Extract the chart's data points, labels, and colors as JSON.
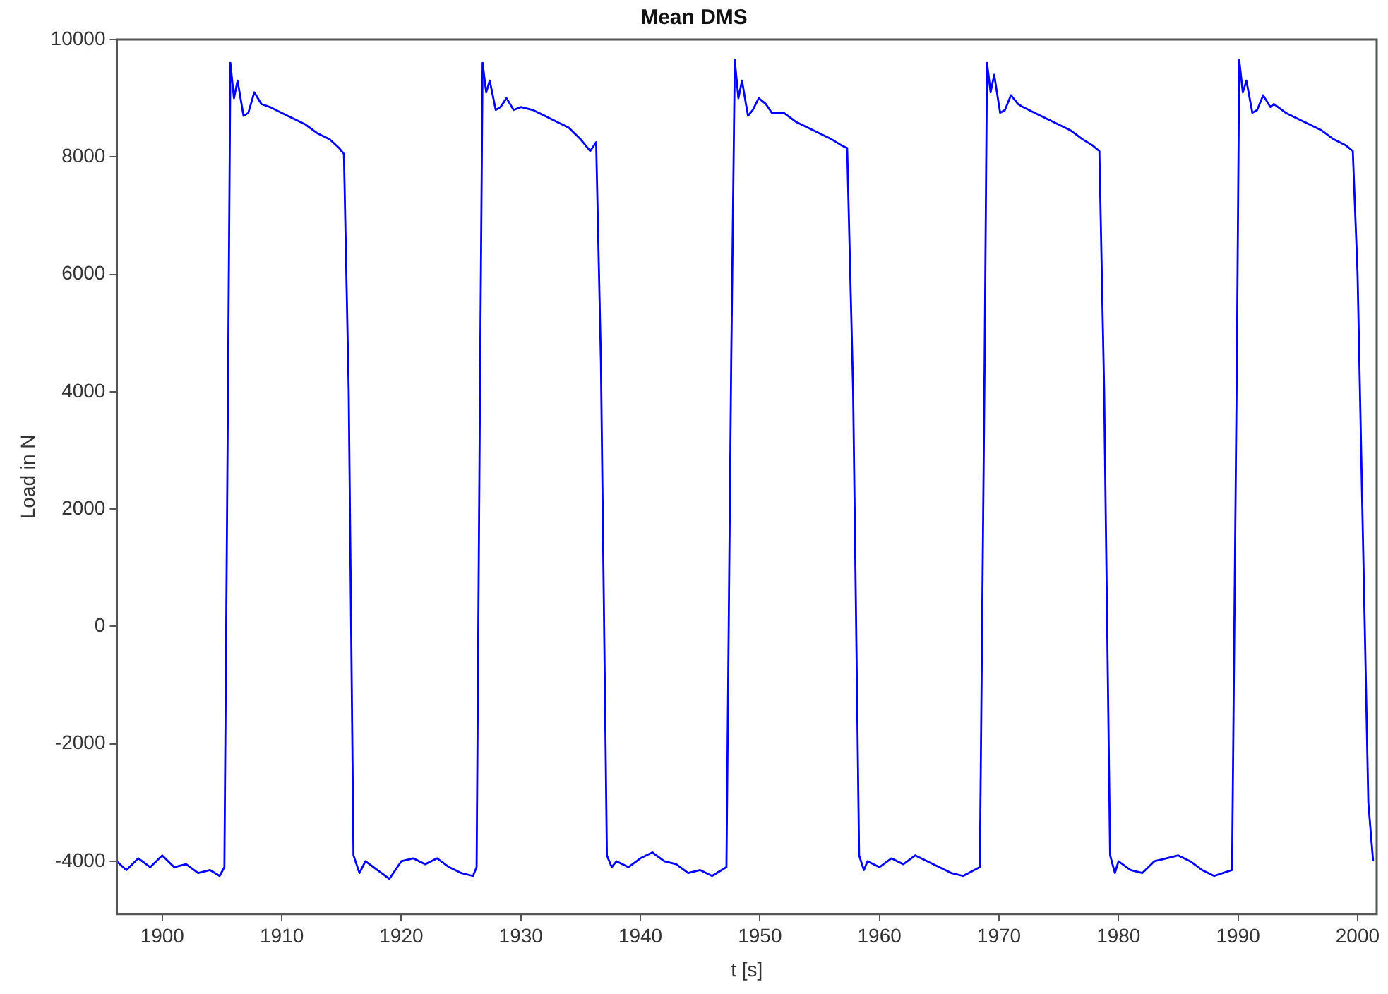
{
  "chart_data": {
    "type": "line",
    "title": "Mean DMS",
    "xlabel": "t [s]",
    "ylabel": "Load in N",
    "xlim": [
      1896.2,
      2001.6
    ],
    "xticks": [
      1900,
      1910,
      1920,
      1930,
      1940,
      1950,
      1960,
      1970,
      1980,
      1990,
      2000
    ],
    "ylim": [
      -4900,
      10000
    ],
    "yticks": [
      -4000,
      -2000,
      0,
      2000,
      4000,
      6000,
      8000,
      10000
    ],
    "grid": false,
    "legend": false,
    "marker": "none",
    "line_style": "solid",
    "series": [
      {
        "color": "#0000ff",
        "x": [
          1896.2,
          1897,
          1898,
          1899,
          1900,
          1901,
          1902,
          1903,
          1904,
          1904.8,
          1905.2,
          1905.5,
          1905.7,
          1906.0,
          1906.3,
          1906.8,
          1907.2,
          1907.7,
          1908.3,
          1909,
          1910,
          1911,
          1912,
          1913,
          1914,
          1914.8,
          1915.2,
          1915.6,
          1916.0,
          1916.5,
          1917,
          1918,
          1919,
          1920,
          1921,
          1922,
          1923,
          1924,
          1925,
          1926,
          1926.3,
          1926.6,
          1926.8,
          1927.1,
          1927.4,
          1927.9,
          1928.3,
          1928.8,
          1929.4,
          1930,
          1931,
          1932,
          1933,
          1934,
          1935,
          1935.8,
          1936.3,
          1936.7,
          1937.2,
          1937.6,
          1938,
          1939,
          1940,
          1941,
          1942,
          1943,
          1944,
          1945,
          1946,
          1947.2,
          1947.6,
          1947.9,
          1948.2,
          1948.5,
          1949,
          1949.4,
          1949.9,
          1950.5,
          1951,
          1952,
          1953,
          1954,
          1955,
          1956,
          1956.8,
          1957.3,
          1957.8,
          1958.3,
          1958.7,
          1959,
          1960,
          1961,
          1962,
          1963,
          1964,
          1965,
          1966,
          1967,
          1968.4,
          1968.8,
          1969.0,
          1969.3,
          1969.6,
          1970.1,
          1970.5,
          1971,
          1971.6,
          1972,
          1973,
          1974,
          1975,
          1976,
          1977,
          1977.8,
          1978.4,
          1978.8,
          1979.3,
          1979.7,
          1980,
          1981,
          1982,
          1983,
          1984,
          1985,
          1986,
          1987,
          1988,
          1989.5,
          1989.9,
          1990.1,
          1990.4,
          1990.7,
          1991.2,
          1991.6,
          1992.1,
          1992.7,
          1993,
          1994,
          1995,
          1996,
          1997,
          1998,
          1999,
          1999.6,
          2000.0,
          2000.4,
          2000.9,
          2001.3
        ],
        "values": [
          -4000,
          -4150,
          -3950,
          -4100,
          -3900,
          -4100,
          -4050,
          -4200,
          -4150,
          -4250,
          -4100,
          4000,
          9600,
          9000,
          9300,
          8700,
          8750,
          9100,
          8900,
          8850,
          8750,
          8650,
          8550,
          8400,
          8300,
          8150,
          8050,
          4000,
          -3900,
          -4200,
          -4000,
          -4150,
          -4300,
          -4000,
          -3950,
          -4050,
          -3950,
          -4100,
          -4200,
          -4250,
          -4100,
          4500,
          9600,
          9100,
          9300,
          8800,
          8850,
          9000,
          8800,
          8850,
          8800,
          8700,
          8600,
          8500,
          8300,
          8100,
          8250,
          4500,
          -3900,
          -4100,
          -4000,
          -4100,
          -3950,
          -3850,
          -4000,
          -4050,
          -4200,
          -4150,
          -4250,
          -4100,
          4500,
          9650,
          9000,
          9300,
          8700,
          8800,
          9000,
          8900,
          8750,
          8750,
          8600,
          8500,
          8400,
          8300,
          8200,
          8150,
          4000,
          -3900,
          -4150,
          -4000,
          -4100,
          -3950,
          -4050,
          -3900,
          -4000,
          -4100,
          -4200,
          -4250,
          -4100,
          4500,
          9600,
          9100,
          9400,
          8750,
          8800,
          9050,
          8900,
          8850,
          8750,
          8650,
          8550,
          8450,
          8300,
          8200,
          8100,
          4000,
          -3900,
          -4200,
          -4000,
          -4150,
          -4200,
          -4000,
          -3950,
          -3900,
          -4000,
          -4150,
          -4250,
          -4150,
          4500,
          9650,
          9100,
          9300,
          8750,
          8800,
          9050,
          8850,
          8900,
          8750,
          8650,
          8550,
          8450,
          8300,
          8200,
          8100,
          6000,
          2000,
          -3000,
          -4000
        ]
      }
    ]
  }
}
